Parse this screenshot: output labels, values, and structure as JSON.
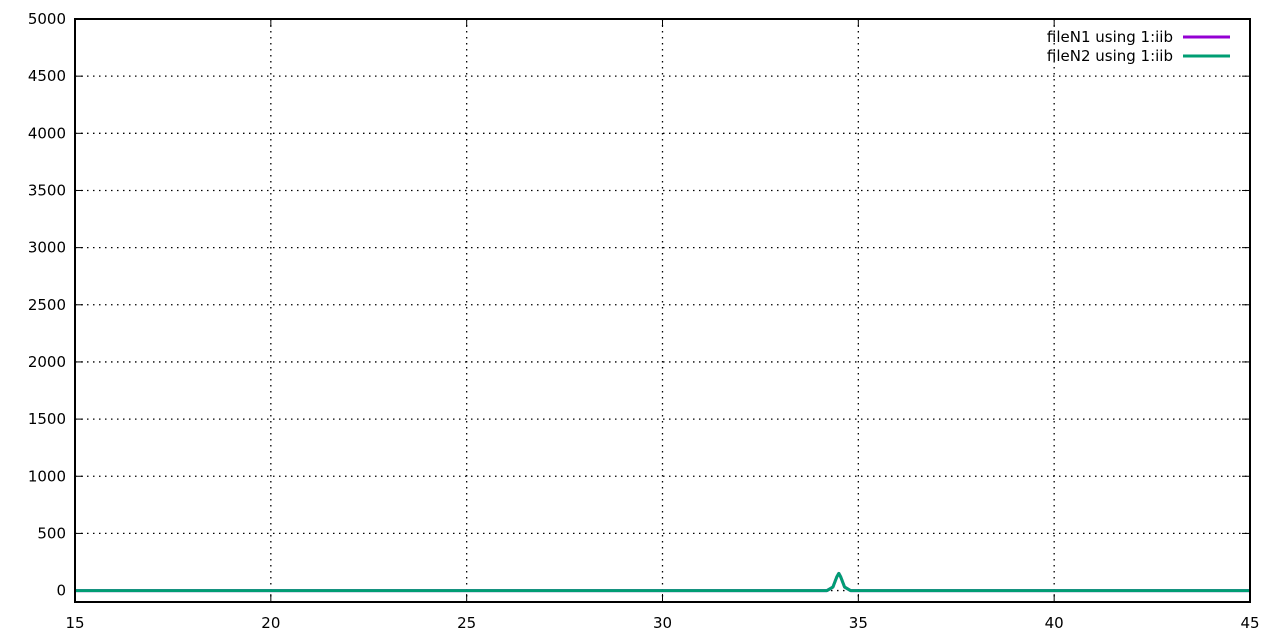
{
  "chart_data": {
    "type": "line",
    "title": "",
    "xlabel": "",
    "ylabel": "",
    "xlim": [
      15,
      45
    ],
    "ylim": [
      -100,
      5000
    ],
    "xticks": [
      15,
      20,
      25,
      30,
      35,
      40,
      45
    ],
    "yticks": [
      0,
      500,
      1000,
      1500,
      2000,
      2500,
      3000,
      3500,
      4000,
      4500,
      5000
    ],
    "grid": true,
    "legend_position": "top-right",
    "series": [
      {
        "name": "fileN1 using 1:iib",
        "color": "#9400d3",
        "x": [
          15,
          34.2,
          34.35,
          34.45,
          34.5,
          34.55,
          34.65,
          34.8,
          45
        ],
        "y": [
          0,
          0,
          30,
          120,
          150,
          120,
          30,
          0,
          0
        ]
      },
      {
        "name": "fileN2 using 1:iib",
        "color": "#009e73",
        "x": [
          15,
          34.2,
          34.35,
          34.45,
          34.5,
          34.55,
          34.65,
          34.8,
          45
        ],
        "y": [
          0,
          0,
          30,
          120,
          150,
          120,
          30,
          0,
          0
        ]
      }
    ]
  }
}
